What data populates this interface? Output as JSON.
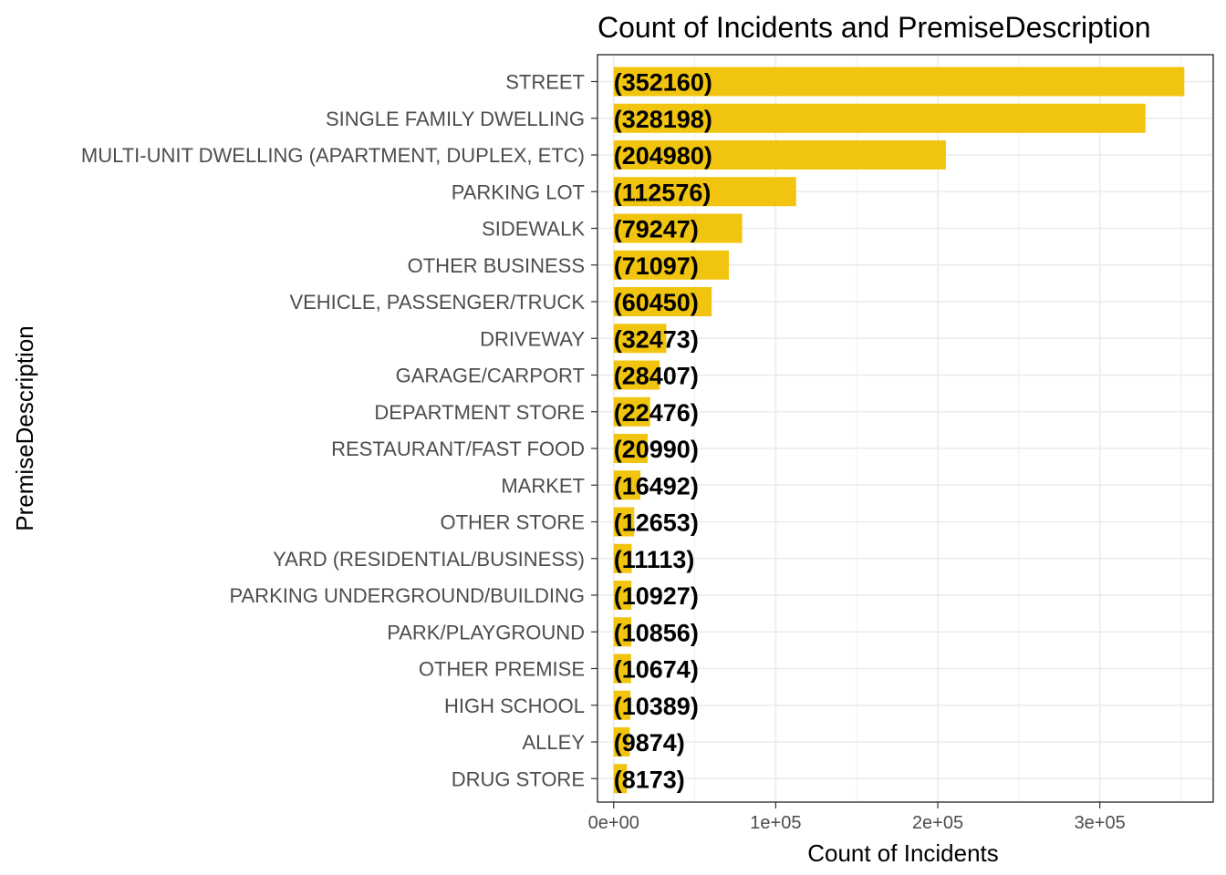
{
  "chart_data": {
    "type": "bar",
    "orientation": "horizontal",
    "title": "Count of Incidents and PremiseDescription",
    "xlabel": "Count of Incidents",
    "ylabel": "PremiseDescription",
    "categories": [
      "STREET",
      "SINGLE FAMILY DWELLING",
      "MULTI-UNIT DWELLING (APARTMENT, DUPLEX, ETC)",
      "PARKING LOT",
      "SIDEWALK",
      "OTHER BUSINESS",
      "VEHICLE, PASSENGER/TRUCK",
      "DRIVEWAY",
      "GARAGE/CARPORT",
      "DEPARTMENT STORE",
      "RESTAURANT/FAST FOOD",
      "MARKET",
      "OTHER STORE",
      "YARD (RESIDENTIAL/BUSINESS)",
      "PARKING UNDERGROUND/BUILDING",
      "PARK/PLAYGROUND",
      "OTHER PREMISE",
      "HIGH SCHOOL",
      "ALLEY",
      "DRUG STORE"
    ],
    "values": [
      352160,
      328198,
      204980,
      112576,
      79247,
      71097,
      60450,
      32473,
      28407,
      22476,
      20990,
      16492,
      12653,
      11113,
      10927,
      10856,
      10674,
      10389,
      9874,
      8173
    ],
    "data_labels": [
      "(352160)",
      "(328198)",
      "(204980)",
      "(112576)",
      "(79247)",
      "(71097)",
      "(60450)",
      "(32473)",
      "(28407)",
      "(22476)",
      "(20990)",
      "(16492)",
      "(12653)",
      "(11113)",
      "(10927)",
      "(10856)",
      "(10674)",
      "(10389)",
      "(9874)",
      "(8173)"
    ],
    "xlim": [
      -10000,
      370000
    ],
    "xticks": [
      0,
      100000,
      200000,
      300000
    ],
    "xtick_labels": [
      "0e+00",
      "1e+05",
      "2e+05",
      "3e+05"
    ],
    "grid": true,
    "bar_color": "#F1C40F",
    "grid_color": "#EBEBEB",
    "panel_border_color": "#333333"
  }
}
